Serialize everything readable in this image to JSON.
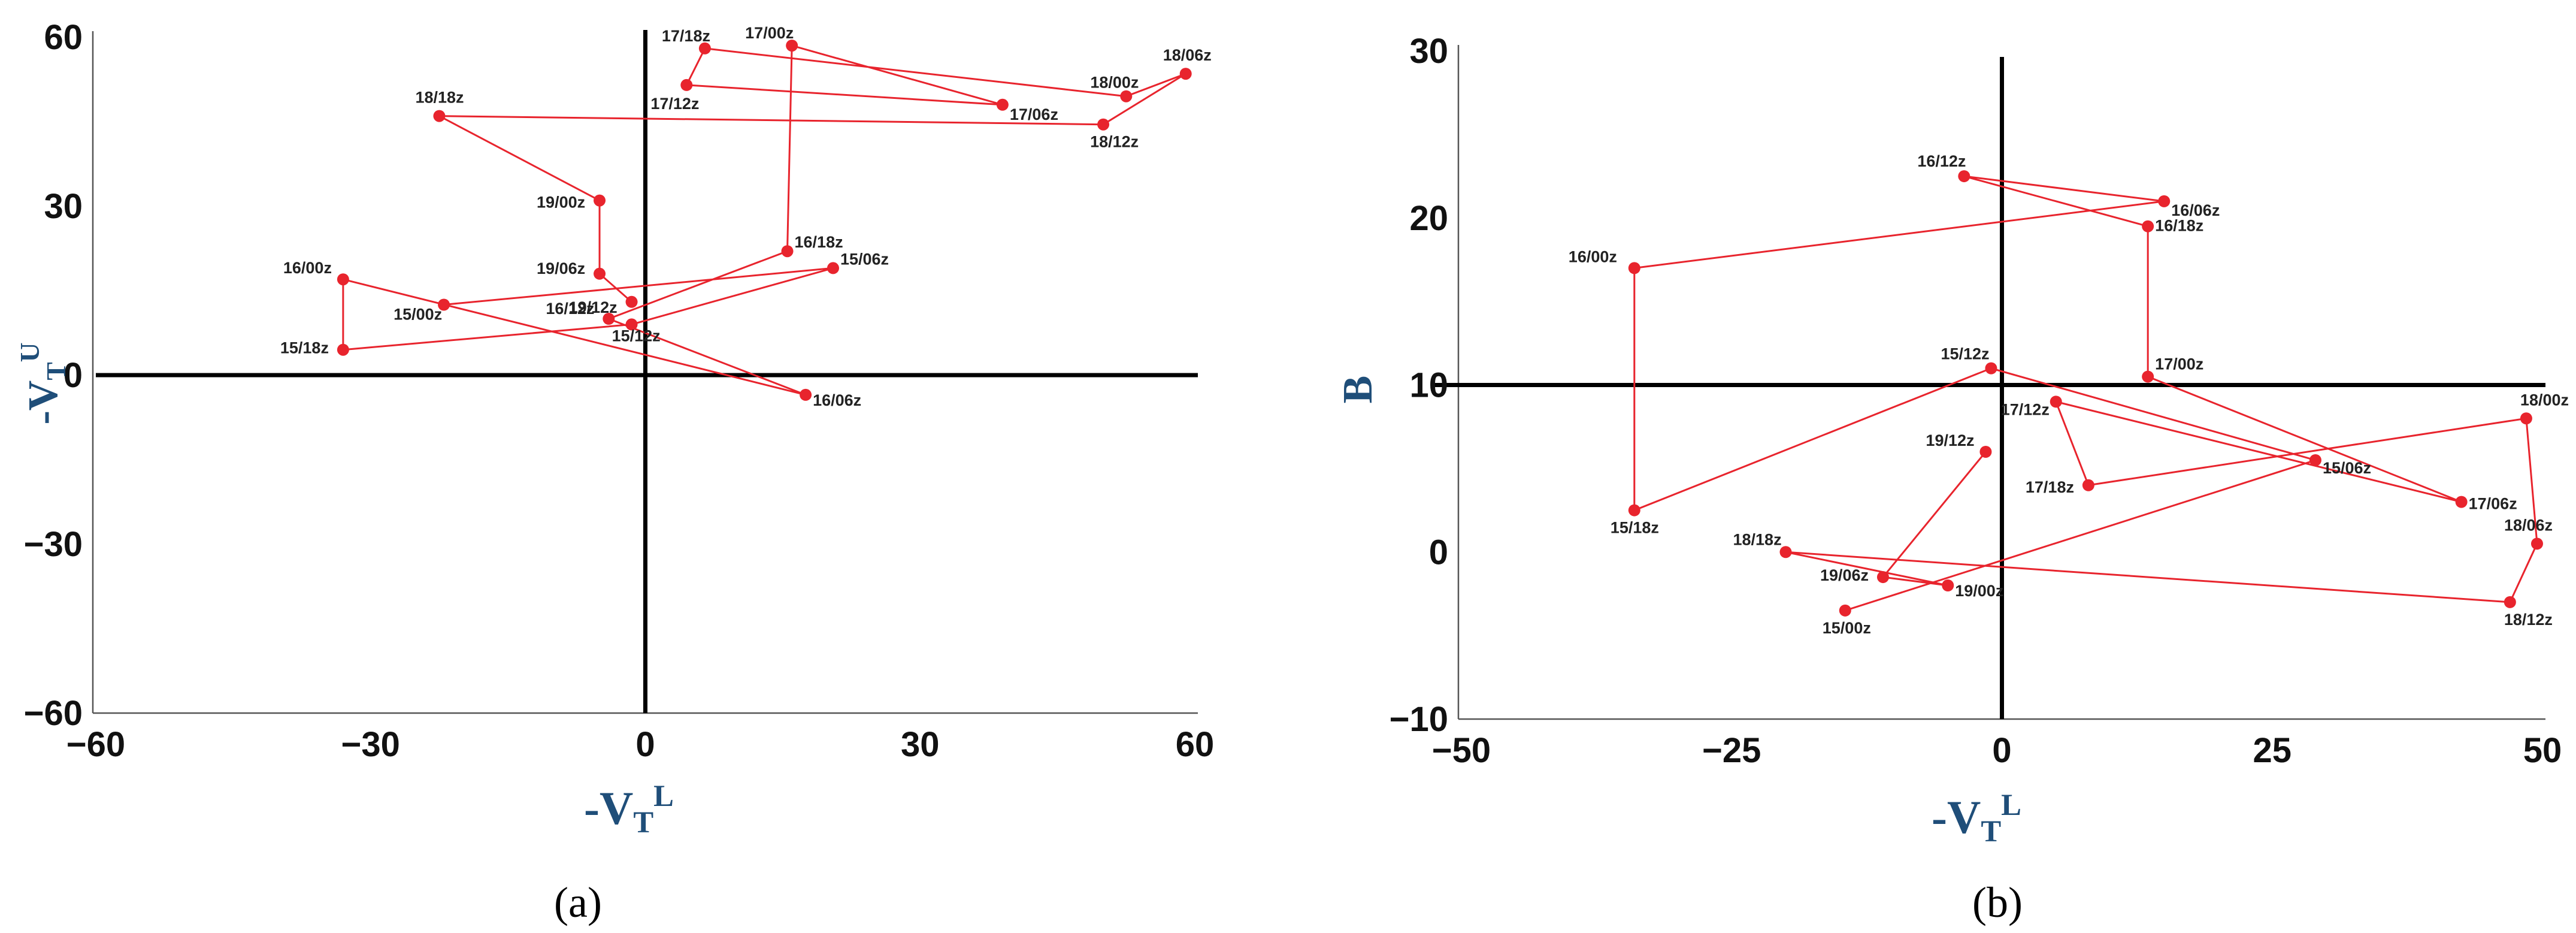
{
  "chart_data": [
    {
      "type": "line",
      "panel_label": "(a)",
      "xlabel": {
        "base": "-V",
        "sub": "T",
        "sup": "L"
      },
      "ylabel": {
        "base": "-V",
        "sub": "T",
        "sup": "U"
      },
      "xlim": [
        -60,
        60
      ],
      "ylim": [
        -60,
        60
      ],
      "xticks": [
        {
          "value": -60,
          "label": "−60"
        },
        {
          "value": -30,
          "label": "−30"
        },
        {
          "value": 0,
          "label": "0"
        },
        {
          "value": 30,
          "label": "30"
        },
        {
          "value": 60,
          "label": "60"
        }
      ],
      "yticks": [
        {
          "value": -60,
          "label": "−60"
        },
        {
          "value": -30,
          "label": "−30"
        },
        {
          "value": 0,
          "label": "0"
        },
        {
          "value": 30,
          "label": "30"
        },
        {
          "value": 60,
          "label": "60"
        }
      ],
      "grid": false,
      "colors": {
        "trajectory": "#e8242d",
        "axes": "#000000"
      },
      "points": [
        {
          "label": "15/00z",
          "x": -22,
          "y": 12.5
        },
        {
          "label": "15/06z",
          "x": 20.5,
          "y": 19
        },
        {
          "label": "15/12z",
          "x": -1.5,
          "y": 9
        },
        {
          "label": "15/18z",
          "x": -33,
          "y": 4.5
        },
        {
          "label": "16/00z",
          "x": -33,
          "y": 17
        },
        {
          "label": "16/06z",
          "x": 17.5,
          "y": -3.5
        },
        {
          "label": "16/12z",
          "x": -4,
          "y": 10
        },
        {
          "label": "16/18z",
          "x": 15.5,
          "y": 22
        },
        {
          "label": "17/00z",
          "x": 16,
          "y": 58.5
        },
        {
          "label": "17/06z",
          "x": 39,
          "y": 48
        },
        {
          "label": "17/12z",
          "x": 4.5,
          "y": 51.5
        },
        {
          "label": "17/18z",
          "x": 6.5,
          "y": 58
        },
        {
          "label": "18/00z",
          "x": 52.5,
          "y": 49.5
        },
        {
          "label": "18/06z",
          "x": 59,
          "y": 53.5
        },
        {
          "label": "18/12z",
          "x": 50,
          "y": 44.5
        },
        {
          "label": "18/18z",
          "x": -22.5,
          "y": 46
        },
        {
          "label": "19/00z",
          "x": -5,
          "y": 31
        },
        {
          "label": "19/06z",
          "x": -5,
          "y": 18
        },
        {
          "label": "19/12z",
          "x": -1.5,
          "y": 13
        }
      ]
    },
    {
      "type": "line",
      "panel_label": "(b)",
      "xlabel": {
        "base": "-V",
        "sub": "T",
        "sup": "L"
      },
      "ylabel": {
        "base": "B",
        "sub": "",
        "sup": ""
      },
      "xlim": [
        -50,
        50
      ],
      "ylim": [
        -10,
        30
      ],
      "x_axis_at": 10,
      "xticks": [
        {
          "value": -50,
          "label": "−50"
        },
        {
          "value": -25,
          "label": "−25"
        },
        {
          "value": 0,
          "label": "0"
        },
        {
          "value": 25,
          "label": "25"
        },
        {
          "value": 50,
          "label": "50"
        }
      ],
      "yticks": [
        {
          "value": -10,
          "label": "−10"
        },
        {
          "value": 0,
          "label": "0"
        },
        {
          "value": 10,
          "label": "10"
        },
        {
          "value": 20,
          "label": "20"
        },
        {
          "value": 30,
          "label": "30"
        }
      ],
      "grid": false,
      "colors": {
        "trajectory": "#e8242d",
        "axes": "#000000"
      },
      "points": [
        {
          "label": "15/00z",
          "x": -14.5,
          "y": -3.5
        },
        {
          "label": "15/06z",
          "x": 29,
          "y": 5.5
        },
        {
          "label": "15/12z",
          "x": -1,
          "y": 11
        },
        {
          "label": "15/18z",
          "x": -34,
          "y": 2.5
        },
        {
          "label": "16/00z",
          "x": -34,
          "y": 17
        },
        {
          "label": "16/06z",
          "x": 15,
          "y": 21
        },
        {
          "label": "16/12z",
          "x": -3.5,
          "y": 22.5
        },
        {
          "label": "16/18z",
          "x": 13.5,
          "y": 19.5
        },
        {
          "label": "17/00z",
          "x": 13.5,
          "y": 10.5
        },
        {
          "label": "17/06z",
          "x": 42.5,
          "y": 3
        },
        {
          "label": "17/12z",
          "x": 5,
          "y": 9
        },
        {
          "label": "17/18z",
          "x": 8,
          "y": 4
        },
        {
          "label": "18/00z",
          "x": 48.5,
          "y": 8
        },
        {
          "label": "18/06z",
          "x": 49.5,
          "y": 0.5
        },
        {
          "label": "18/12z",
          "x": 47,
          "y": -3
        },
        {
          "label": "18/18z",
          "x": -20,
          "y": 0
        },
        {
          "label": "19/00z",
          "x": -5,
          "y": -2
        },
        {
          "label": "19/06z",
          "x": -11,
          "y": -1.5
        },
        {
          "label": "19/12z",
          "x": -1.5,
          "y": 6
        }
      ]
    }
  ]
}
